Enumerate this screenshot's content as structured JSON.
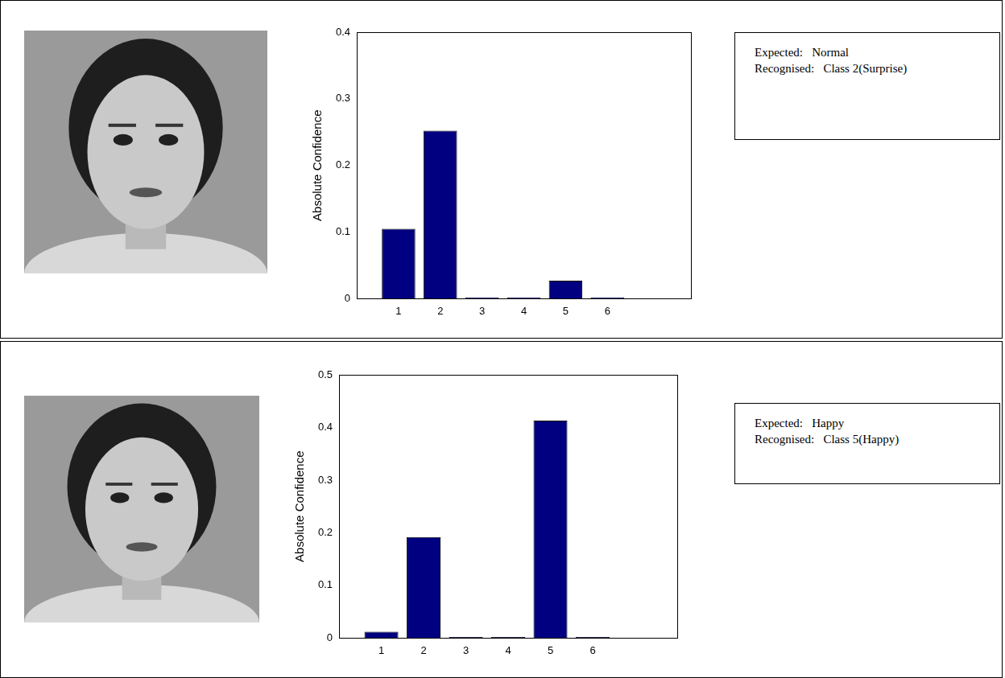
{
  "chart_data": [
    {
      "type": "bar",
      "y_label": "Absolute Confidence",
      "x": [
        1,
        2,
        3,
        4,
        5,
        6
      ],
      "values": [
        0.105,
        0.252,
        0.002,
        0.002,
        0.027,
        0.002
      ],
      "color": "#000080",
      "xlim": [
        0,
        8
      ],
      "xticks": [
        1,
        2,
        3,
        4,
        5,
        6
      ],
      "ylim": [
        0,
        0.4
      ],
      "yticks": [
        0,
        0.1,
        0.2,
        0.3,
        0.4
      ],
      "grid": false,
      "annotations": [
        "Expected:   Normal",
        "Recognised:   Class 2(Surprise)"
      ]
    },
    {
      "type": "bar",
      "y_label": "Absolute Confidence",
      "x": [
        1,
        2,
        3,
        4,
        5,
        6
      ],
      "values": [
        0.012,
        0.192,
        0.002,
        0.002,
        0.413,
        0.002
      ],
      "color": "#000080",
      "xlim": [
        0,
        8
      ],
      "xticks": [
        1,
        2,
        3,
        4,
        5,
        6
      ],
      "ylim": [
        0,
        0.5
      ],
      "yticks": [
        0,
        0.1,
        0.2,
        0.3,
        0.4,
        0.5
      ],
      "grid": false,
      "annotations": [
        "Expected:   Happy",
        "Recognised:   Class 5(Happy)"
      ]
    }
  ]
}
